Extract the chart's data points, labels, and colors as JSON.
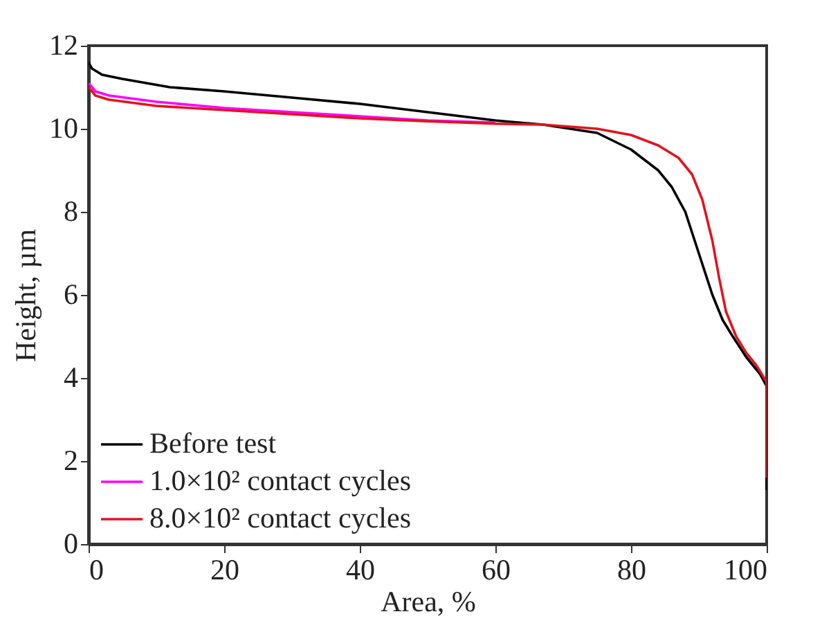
{
  "chart_data": {
    "type": "line",
    "xlabel": "Area, %",
    "ylabel": "Height, µm",
    "xlim": [
      0,
      100
    ],
    "xticks": [
      0,
      20,
      40,
      60,
      80,
      100
    ],
    "ylim": [
      0,
      12
    ],
    "yticks": [
      0,
      2,
      4,
      6,
      8,
      10,
      12
    ],
    "grid": false,
    "legend": "bottom left",
    "line_style": "solid",
    "series": [
      {
        "name": "Before test",
        "color": "#000000",
        "x": [
          0,
          0.5,
          2,
          5,
          12,
          20,
          30,
          40,
          50,
          60,
          67,
          75,
          80,
          84,
          86,
          88,
          90,
          92,
          93.5,
          95,
          97,
          99,
          100,
          100
        ],
        "values": [
          11.6,
          11.45,
          11.3,
          11.2,
          11.0,
          10.9,
          10.75,
          10.6,
          10.4,
          10.2,
          10.1,
          9.9,
          9.5,
          9.0,
          8.6,
          8.0,
          7.0,
          6.0,
          5.4,
          5.0,
          4.5,
          4.1,
          3.8,
          1.3
        ]
      },
      {
        "name": "1.0×10² contact cycles",
        "color": "#ff00ff",
        "x": [
          0,
          1,
          3,
          10,
          20,
          30,
          40,
          50,
          60
        ],
        "values": [
          11.1,
          10.9,
          10.8,
          10.65,
          10.5,
          10.4,
          10.3,
          10.2,
          10.15
        ]
      },
      {
        "name": "8.0×10² contact cycles",
        "color": "#e0141e",
        "x": [
          0,
          1,
          3,
          10,
          20,
          30,
          40,
          50,
          60,
          67,
          75,
          80,
          84,
          87,
          89,
          90.5,
          92,
          93,
          94,
          95.5,
          97,
          98.5,
          100,
          100
        ],
        "values": [
          11.0,
          10.8,
          10.7,
          10.55,
          10.45,
          10.35,
          10.25,
          10.18,
          10.12,
          10.1,
          10.0,
          9.85,
          9.6,
          9.3,
          8.9,
          8.3,
          7.3,
          6.4,
          5.6,
          5.0,
          4.6,
          4.3,
          3.9,
          1.6
        ]
      }
    ]
  }
}
